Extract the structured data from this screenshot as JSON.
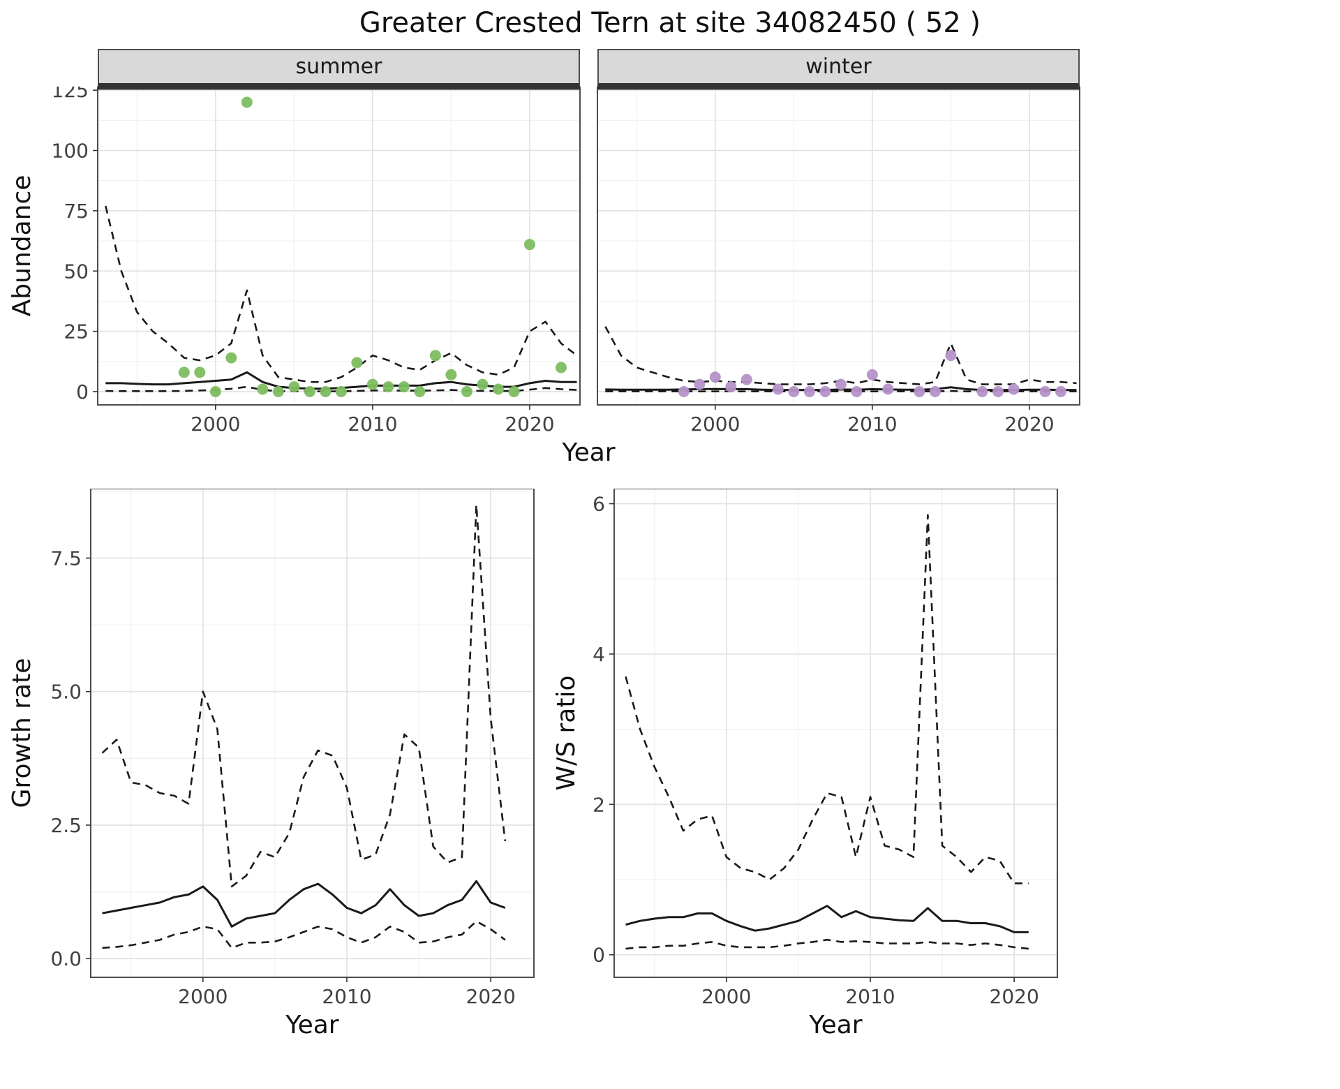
{
  "title": "Greater Crested Tern at site 34082450 ( 52 )",
  "colors": {
    "summer_point": "#7cbd5f",
    "winter_point": "#b592c9",
    "line": "#1a1a1a",
    "grid_major": "#e2e2e2",
    "grid_minor": "#f0f0f0",
    "panel_border": "#4d4d4d",
    "strip_bg": "#d9d9d9",
    "axis_text": "#404040",
    "tick_mark": "#333333"
  },
  "chart_data": [
    {
      "id": "abundance-summer",
      "type": "scatter",
      "facet_label": "summer",
      "xlabel": "Year",
      "ylabel": "Abundance",
      "xlim": [
        1992.5,
        2023.2
      ],
      "ylim": [
        -5.5,
        126.5
      ],
      "xticks": [
        2000,
        2010,
        2020
      ],
      "yticks": [
        0,
        25,
        50,
        75,
        100,
        125
      ],
      "ytick_labels": [
        "0",
        "25",
        "50",
        "75",
        "100",
        "125"
      ],
      "line_x": [
        1993,
        1994,
        1995,
        1996,
        1997,
        1998,
        1999,
        2000,
        2001,
        2002,
        2003,
        2004,
        2005,
        2006,
        2007,
        2008,
        2009,
        2010,
        2011,
        2012,
        2013,
        2014,
        2015,
        2016,
        2017,
        2018,
        2019,
        2020,
        2021,
        2022,
        2023
      ],
      "lines": [
        {
          "name": "mean",
          "style": "solid",
          "y": [
            3.5,
            3.5,
            3.2,
            3,
            3,
            3.5,
            4,
            4.5,
            5,
            8,
            4,
            2,
            1.5,
            1.2,
            1.2,
            1.5,
            2,
            2.5,
            2.5,
            2.5,
            2.5,
            3.5,
            4,
            3,
            2.5,
            2,
            2,
            3.5,
            4.5,
            4,
            4
          ]
        },
        {
          "name": "upper-ci",
          "style": "dashed",
          "y": [
            77,
            50,
            33,
            25,
            20,
            14,
            13,
            15,
            20,
            42,
            15,
            6,
            5,
            4,
            4,
            6,
            10,
            15,
            13,
            10,
            9,
            13,
            16,
            11,
            8,
            7,
            10,
            25,
            29,
            20,
            15
          ]
        },
        {
          "name": "lower-ci",
          "style": "dashed",
          "y": [
            0.3,
            0.2,
            0.2,
            0.2,
            0.2,
            0.3,
            0.5,
            0.7,
            1.2,
            2,
            0.7,
            0.2,
            0.15,
            0.1,
            0.1,
            0.15,
            0.3,
            0.5,
            0.5,
            0.4,
            0.4,
            0.5,
            0.7,
            0.4,
            0.3,
            0.25,
            0.3,
            0.8,
            1.5,
            1,
            0.7
          ]
        }
      ],
      "points": {
        "label": "observed-abundance",
        "color_key": "summer_point",
        "x": [
          1998,
          1999,
          2000,
          2001,
          2002,
          2003,
          2004,
          2005,
          2006,
          2007,
          2008,
          2009,
          2010,
          2011,
          2012,
          2013,
          2014,
          2015,
          2016,
          2017,
          2018,
          2019,
          2020,
          2022
        ],
        "y": [
          8,
          8,
          0,
          14,
          120,
          1,
          0,
          2,
          0,
          0,
          0,
          12,
          3,
          2,
          2,
          0,
          15,
          7,
          0,
          3,
          1,
          0,
          61,
          10
        ]
      }
    },
    {
      "id": "abundance-winter",
      "type": "scatter",
      "facet_label": "winter",
      "xlabel": "Year",
      "ylabel": "Abundance",
      "xlim": [
        1992.5,
        2023.2
      ],
      "ylim": [
        -5.5,
        126.5
      ],
      "xticks": [
        2000,
        2010,
        2020
      ],
      "yticks": [
        0,
        25,
        50,
        75,
        100,
        125
      ],
      "ytick_labels": [
        "0",
        "25",
        "50",
        "75",
        "100",
        "125"
      ],
      "line_x": [
        1993,
        1994,
        1995,
        1996,
        1997,
        1998,
        1999,
        2000,
        2001,
        2002,
        2003,
        2004,
        2005,
        2006,
        2007,
        2008,
        2009,
        2010,
        2011,
        2012,
        2013,
        2014,
        2015,
        2016,
        2017,
        2018,
        2019,
        2020,
        2021,
        2022,
        2023
      ],
      "lines": [
        {
          "name": "mean",
          "style": "solid",
          "y": [
            0.9,
            0.8,
            0.8,
            0.8,
            0.8,
            0.9,
            1,
            1.1,
            1,
            1,
            0.8,
            0.7,
            0.7,
            0.7,
            0.7,
            0.9,
            0.8,
            1,
            0.9,
            0.8,
            0.8,
            1,
            1.8,
            1,
            0.7,
            0.7,
            0.7,
            0.8,
            0.8,
            0.7,
            0.7
          ]
        },
        {
          "name": "upper-ci",
          "style": "dashed",
          "y": [
            27,
            15,
            10,
            8,
            6,
            4.5,
            4,
            4.5,
            4,
            4,
            3.5,
            3,
            3,
            3,
            3.5,
            4.5,
            3.5,
            5,
            4,
            3.5,
            3,
            4,
            20,
            5,
            3,
            3,
            3,
            5,
            4,
            4,
            3.5
          ]
        },
        {
          "name": "lower-ci",
          "style": "dashed",
          "y": [
            0.1,
            0.1,
            0.1,
            0.1,
            0.1,
            0.1,
            0.1,
            0.1,
            0.1,
            0.1,
            0.1,
            0.1,
            0.1,
            0.1,
            0.1,
            0.1,
            0.1,
            0.1,
            0.1,
            0.1,
            0.1,
            0.1,
            0.3,
            0.1,
            0.1,
            0.1,
            0.1,
            0.1,
            0.1,
            0.1,
            0.1
          ]
        }
      ],
      "points": {
        "label": "observed-abundance",
        "color_key": "winter_point",
        "x": [
          1998,
          1999,
          2000,
          2001,
          2002,
          2004,
          2005,
          2006,
          2007,
          2008,
          2009,
          2010,
          2011,
          2013,
          2014,
          2015,
          2017,
          2018,
          2019,
          2021,
          2022
        ],
        "y": [
          0,
          3,
          6,
          2,
          5,
          1,
          0,
          0,
          0,
          3,
          0,
          7,
          1,
          0,
          0,
          15,
          0,
          0,
          1,
          0,
          0
        ]
      }
    },
    {
      "id": "growth-rate",
      "type": "line",
      "xlabel": "Year",
      "ylabel": "Growth rate",
      "xlim": [
        1992.2,
        2023.0
      ],
      "ylim": [
        -0.35,
        8.8
      ],
      "xticks": [
        2000,
        2010,
        2020
      ],
      "yticks": [
        0,
        2.5,
        5,
        7.5
      ],
      "ytick_labels": [
        "0.0",
        "2.5",
        "5.0",
        "7.5"
      ],
      "line_x": [
        1993,
        1994,
        1995,
        1996,
        1997,
        1998,
        1999,
        2000,
        2001,
        2002,
        2003,
        2004,
        2005,
        2006,
        2007,
        2008,
        2009,
        2010,
        2011,
        2012,
        2013,
        2014,
        2015,
        2016,
        2017,
        2018,
        2019,
        2020,
        2021
      ],
      "lines": [
        {
          "name": "mean",
          "style": "solid",
          "y": [
            0.85,
            0.9,
            0.95,
            1,
            1.05,
            1.15,
            1.2,
            1.35,
            1.1,
            0.6,
            0.75,
            0.8,
            0.85,
            1.1,
            1.3,
            1.4,
            1.2,
            0.95,
            0.85,
            1,
            1.3,
            1,
            0.8,
            0.85,
            1,
            1.1,
            1.45,
            1.05,
            0.95
          ]
        },
        {
          "name": "upper-ci",
          "style": "dashed",
          "y": [
            3.85,
            4.1,
            3.3,
            3.25,
            3.1,
            3.05,
            2.9,
            5,
            4.3,
            1.35,
            1.55,
            2,
            1.9,
            2.35,
            3.4,
            3.9,
            3.8,
            3.2,
            1.85,
            1.95,
            2.7,
            4.2,
            3.95,
            2.1,
            1.8,
            1.9,
            8.5,
            4.5,
            2.2
          ]
        },
        {
          "name": "lower-ci",
          "style": "dashed",
          "y": [
            0.2,
            0.22,
            0.25,
            0.3,
            0.35,
            0.45,
            0.5,
            0.6,
            0.55,
            0.2,
            0.3,
            0.3,
            0.32,
            0.4,
            0.5,
            0.6,
            0.55,
            0.4,
            0.3,
            0.4,
            0.6,
            0.5,
            0.3,
            0.32,
            0.4,
            0.45,
            0.7,
            0.55,
            0.35
          ]
        }
      ]
    },
    {
      "id": "ws-ratio",
      "type": "line",
      "xlabel": "Year",
      "ylabel": "W/S ratio",
      "xlim": [
        1992.2,
        2023.0
      ],
      "ylim": [
        -0.3,
        6.2
      ],
      "xticks": [
        2000,
        2010,
        2020
      ],
      "yticks": [
        0,
        2,
        4,
        6
      ],
      "ytick_labels": [
        "0",
        "2",
        "4",
        "6"
      ],
      "line_x": [
        1993,
        1994,
        1995,
        1996,
        1997,
        1998,
        1999,
        2000,
        2001,
        2002,
        2003,
        2004,
        2005,
        2006,
        2007,
        2008,
        2009,
        2010,
        2011,
        2012,
        2013,
        2014,
        2015,
        2016,
        2017,
        2018,
        2019,
        2020,
        2021
      ],
      "lines": [
        {
          "name": "mean",
          "style": "solid",
          "y": [
            0.4,
            0.45,
            0.48,
            0.5,
            0.5,
            0.55,
            0.55,
            0.45,
            0.38,
            0.32,
            0.35,
            0.4,
            0.45,
            0.55,
            0.65,
            0.5,
            0.58,
            0.5,
            0.48,
            0.46,
            0.45,
            0.62,
            0.45,
            0.45,
            0.42,
            0.42,
            0.38,
            0.3,
            0.3
          ]
        },
        {
          "name": "upper-ci",
          "style": "dashed",
          "y": [
            3.7,
            3,
            2.5,
            2.1,
            1.65,
            1.8,
            1.85,
            1.3,
            1.15,
            1.1,
            1,
            1.15,
            1.4,
            1.8,
            2.15,
            2.1,
            1.3,
            2.1,
            1.45,
            1.4,
            1.3,
            5.85,
            1.45,
            1.3,
            1.1,
            1.3,
            1.25,
            0.95,
            0.95
          ]
        },
        {
          "name": "lower-ci",
          "style": "dashed",
          "y": [
            0.08,
            0.1,
            0.1,
            0.12,
            0.12,
            0.15,
            0.17,
            0.12,
            0.1,
            0.1,
            0.1,
            0.12,
            0.15,
            0.17,
            0.2,
            0.17,
            0.18,
            0.17,
            0.15,
            0.15,
            0.15,
            0.17,
            0.15,
            0.15,
            0.13,
            0.15,
            0.13,
            0.1,
            0.08
          ]
        }
      ]
    }
  ]
}
